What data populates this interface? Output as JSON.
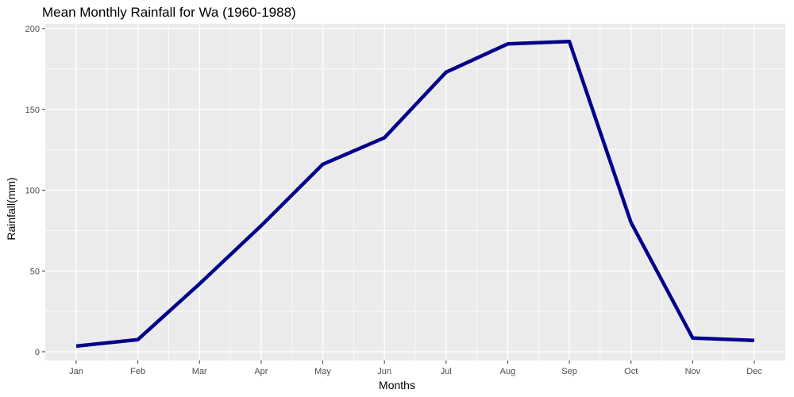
{
  "chart_data": {
    "type": "line",
    "title": "Mean Monthly Rainfall for Wa (1960-1988)",
    "xlabel": "Months",
    "ylabel": "Rainfall(mm)",
    "categories": [
      "Jan",
      "Feb",
      "Mar",
      "Apr",
      "May",
      "Jun",
      "Jul",
      "Aug",
      "Sep",
      "Oct",
      "Nov",
      "Dec"
    ],
    "values": [
      3.5,
      7.5,
      42,
      78,
      116,
      132.5,
      173,
      190.5,
      192,
      80,
      8.5,
      7
    ],
    "ylim": [
      -5,
      200
    ],
    "yticks": [
      0,
      50,
      100,
      150,
      200
    ],
    "grid": true,
    "colors": {
      "line": "#00008b",
      "panel": "#ebebeb",
      "grid": "#ffffff",
      "tick_text": "#4d4d4d"
    }
  }
}
